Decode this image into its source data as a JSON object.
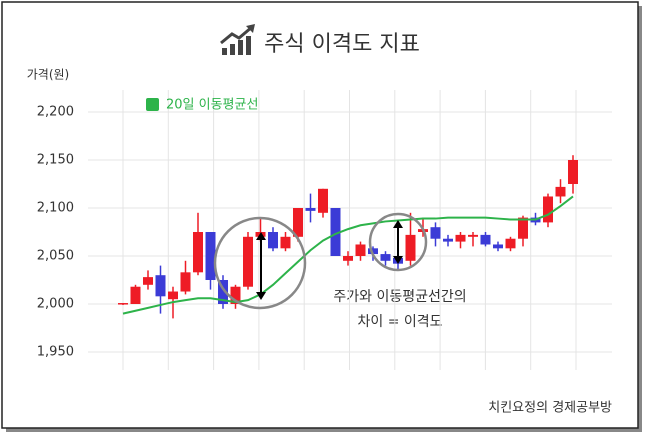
{
  "chart_data": {
    "type": "candlestick",
    "title": "주식 이격도 지표",
    "y_label": "가격(원)",
    "ylim": [
      1935,
      2225
    ],
    "yticks": [
      {
        "value": 1950,
        "label": "1,950"
      },
      {
        "value": 2000,
        "label": "2,000"
      },
      {
        "value": 2050,
        "label": "2,050"
      },
      {
        "value": 2100,
        "label": "2,100"
      },
      {
        "value": 2150,
        "label": "2,150"
      },
      {
        "value": 2200,
        "label": "2,200"
      }
    ],
    "grid": true,
    "legend": "upper left",
    "up_color": "#ee1c25",
    "down_color": "#3b3bd6",
    "open": [
      2000,
      2000,
      2020,
      2030,
      2005,
      2013,
      2033,
      2075,
      2025,
      2000,
      2018,
      2070,
      2075,
      2058,
      2070,
      2100,
      2095,
      2100,
      2045,
      2050,
      2058,
      2052,
      2048,
      2045,
      2075,
      2080,
      2068,
      2065,
      2070,
      2072,
      2062,
      2058,
      2068,
      2090,
      2085,
      2112,
      2125
    ],
    "high": [
      2001,
      2020,
      2035,
      2040,
      2018,
      2045,
      2095,
      2075,
      2030,
      2020,
      2075,
      2090,
      2080,
      2075,
      2100,
      2115,
      2120,
      2100,
      2055,
      2065,
      2060,
      2055,
      2075,
      2095,
      2090,
      2085,
      2072,
      2075,
      2075,
      2075,
      2065,
      2070,
      2092,
      2095,
      2115,
      2130,
      2155
    ],
    "low": [
      1999,
      2000,
      2015,
      1990,
      1985,
      2010,
      2030,
      2015,
      1995,
      1995,
      2015,
      2065,
      2055,
      2055,
      2065,
      2085,
      2090,
      2050,
      2040,
      2045,
      2045,
      2040,
      2035,
      2040,
      2070,
      2060,
      2060,
      2058,
      2060,
      2060,
      2055,
      2055,
      2060,
      2082,
      2080,
      2105,
      2115
    ],
    "close": [
      2001,
      2018,
      2028,
      2008,
      2013,
      2033,
      2075,
      2025,
      2000,
      2018,
      2070,
      2075,
      2058,
      2070,
      2100,
      2097,
      2120,
      2050,
      2050,
      2062,
      2052,
      2045,
      2042,
      2072,
      2078,
      2068,
      2065,
      2072,
      2072,
      2062,
      2058,
      2068,
      2090,
      2085,
      2112,
      2122,
      2150
    ],
    "series": [
      {
        "name": "20일 이동평균선",
        "color": "#2db34a",
        "values": [
          1990,
          1993,
          1996,
          1999,
          2002,
          2004,
          2006,
          2006,
          2004,
          2002,
          2004,
          2010,
          2020,
          2032,
          2044,
          2056,
          2066,
          2073,
          2078,
          2082,
          2084,
          2086,
          2087,
          2088,
          2089,
          2089,
          2090,
          2090,
          2090,
          2090,
          2089,
          2088,
          2088,
          2088,
          2093,
          2102,
          2112
        ]
      }
    ],
    "annotation": [
      "주가와 이동평균선간의",
      "차이 = 이격도"
    ],
    "source": "치킨요정의 경제공부방"
  }
}
